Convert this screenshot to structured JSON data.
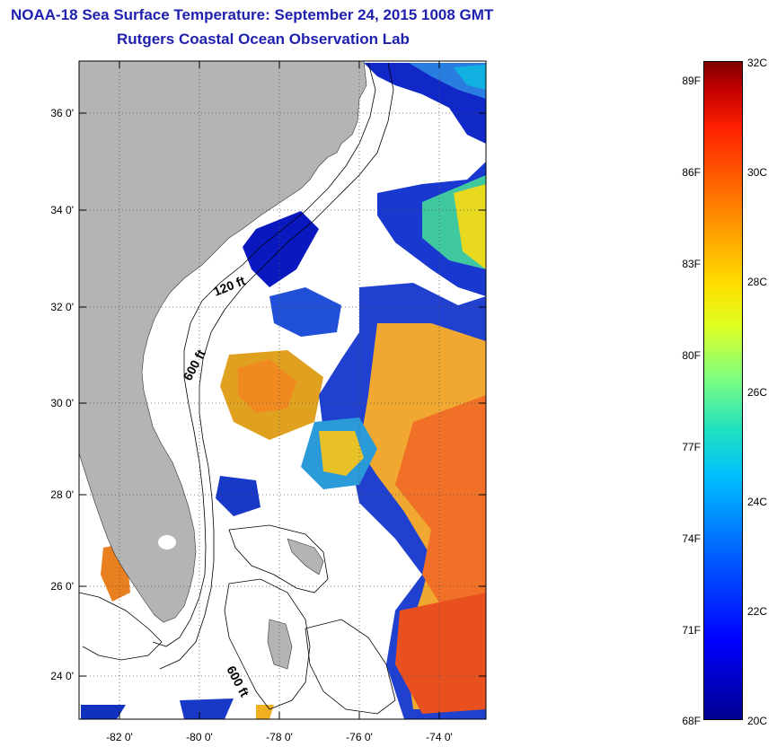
{
  "title": {
    "line1": "NOAA-18 Sea Surface Temperature:  September 24, 2015 1008 GMT",
    "line2": "Rutgers Coastal Ocean Observation Lab"
  },
  "map": {
    "lat_labels": [
      "36 0'",
      "34 0'",
      "32 0'",
      "30 0'",
      "28 0'",
      "26 0'",
      "24 0'"
    ],
    "lon_labels": [
      "-82 0'",
      "-80 0'",
      "-78 0'",
      "-76 0'",
      "-74 0'"
    ],
    "contour_labels": [
      "120 ft",
      "600 ft",
      "600 ft"
    ],
    "land_color": "#b4b4b4",
    "ocean_color": "#ffffff"
  },
  "colorbar": {
    "fahrenheit_labels": [
      "89F",
      "86F",
      "83F",
      "80F",
      "77F",
      "74F",
      "71F",
      "68F"
    ],
    "celsius_labels": [
      "32C",
      "30C",
      "28C",
      "26C",
      "24C",
      "22C",
      "20C"
    ],
    "min_c": 20,
    "max_c": 32
  }
}
